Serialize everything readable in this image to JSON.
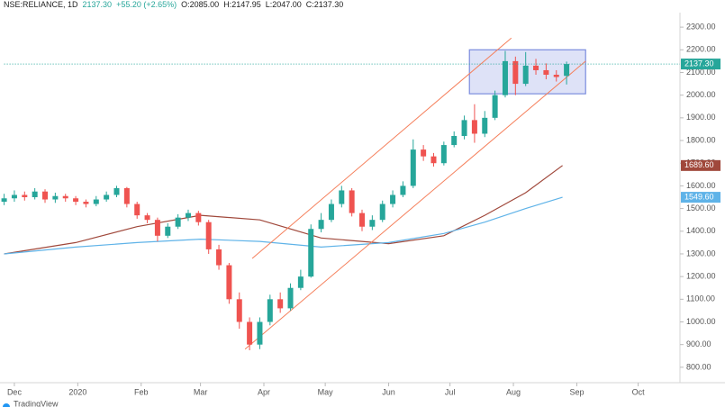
{
  "header": {
    "symbol": "NSE:RELIANCE, 1D",
    "last": "2137.30",
    "change": "+55.20 (+2.65%)",
    "open": "O:2085.00",
    "high": "H:2147.95",
    "low": "L:2047.00",
    "close": "C:2137.30"
  },
  "footer": {
    "brand": "TradingView"
  },
  "chart_data": {
    "type": "candlestick",
    "x": [
      -5,
      0,
      5,
      10,
      15,
      20,
      25,
      30,
      35,
      40,
      45,
      50,
      55,
      60,
      65,
      70,
      75,
      80,
      85,
      90,
      95,
      100,
      105,
      110,
      115,
      120,
      125,
      130,
      135,
      140,
      145,
      150,
      155,
      160,
      165,
      170,
      175,
      180,
      185,
      190,
      195,
      200,
      205,
      210,
      215,
      220,
      225,
      230,
      235,
      240,
      245,
      250,
      255,
      260,
      265,
      270
    ],
    "open": [
      1530,
      1545,
      1560,
      1550,
      1575,
      1540,
      1555,
      1545,
      1530,
      1520,
      1540,
      1560,
      1590,
      1520,
      1470,
      1450,
      1380,
      1420,
      1460,
      1480,
      1440,
      1320,
      1250,
      1100,
      1000,
      900,
      1000,
      1100,
      1060,
      1150,
      1200,
      1410,
      1450,
      1520,
      1580,
      1480,
      1420,
      1450,
      1520,
      1560,
      1600,
      1760,
      1730,
      1700,
      1780,
      1820,
      1890,
      1830,
      1900,
      2000,
      2150,
      2050,
      2130,
      2110,
      2090,
      2085
    ],
    "high": [
      1565,
      1580,
      1575,
      1590,
      1585,
      1570,
      1565,
      1555,
      1540,
      1555,
      1575,
      1600,
      1595,
      1530,
      1480,
      1460,
      1435,
      1475,
      1495,
      1490,
      1450,
      1340,
      1260,
      1130,
      1020,
      1020,
      1120,
      1130,
      1170,
      1230,
      1430,
      1480,
      1540,
      1600,
      1590,
      1495,
      1470,
      1535,
      1580,
      1620,
      1805,
      1780,
      1745,
      1795,
      1840,
      1910,
      1960,
      1930,
      2020,
      2195,
      2170,
      2190,
      2160,
      2140,
      2110,
      2147.95
    ],
    "low": [
      1515,
      1530,
      1535,
      1540,
      1525,
      1525,
      1530,
      1515,
      1505,
      1510,
      1530,
      1550,
      1505,
      1455,
      1435,
      1355,
      1370,
      1410,
      1445,
      1425,
      1300,
      1230,
      1080,
      970,
      875,
      880,
      985,
      1040,
      1050,
      1140,
      1195,
      1395,
      1440,
      1505,
      1465,
      1400,
      1405,
      1440,
      1505,
      1550,
      1590,
      1710,
      1685,
      1690,
      1770,
      1805,
      1790,
      1815,
      1890,
      1990,
      2000,
      2040,
      2090,
      2070,
      2060,
      2047
    ],
    "close": [
      1545,
      1560,
      1550,
      1575,
      1540,
      1555,
      1545,
      1530,
      1520,
      1540,
      1560,
      1590,
      1520,
      1470,
      1450,
      1380,
      1420,
      1460,
      1480,
      1440,
      1320,
      1250,
      1100,
      1000,
      900,
      1000,
      1100,
      1060,
      1150,
      1200,
      1410,
      1450,
      1520,
      1580,
      1480,
      1420,
      1450,
      1520,
      1560,
      1600,
      1760,
      1730,
      1700,
      1780,
      1820,
      1890,
      1830,
      1900,
      2000,
      2150,
      2050,
      2130,
      2110,
      2090,
      2080,
      2137.3
    ],
    "up_color": "#26a69a",
    "down_color": "#ef5350",
    "last_label": "2137.30",
    "series": [
      {
        "color": "#a0483b",
        "x": [
          -5,
          30,
          60,
          91,
          120,
          150,
          183,
          210,
          230,
          250,
          268
        ],
        "values": [
          1300,
          1350,
          1420,
          1470,
          1450,
          1370,
          1345,
          1380,
          1470,
          1570,
          1689.6
        ],
        "last_label": "1689.60"
      },
      {
        "color": "#5fb3e8",
        "x": [
          -5,
          30,
          60,
          91,
          120,
          150,
          183,
          210,
          230,
          250,
          268
        ],
        "values": [
          1300,
          1330,
          1350,
          1365,
          1355,
          1330,
          1350,
          1390,
          1440,
          1500,
          1549.6
        ],
        "last_label": "1549.60"
      }
    ],
    "channel": {
      "color": "#f57f5b",
      "lower": {
        "x": [
          112.8,
          279.3
        ],
        "y": [
          880,
          2150
        ]
      },
      "upper": {
        "x": [
          116.3,
          243
        ],
        "y": [
          1280,
          2252
        ]
      }
    },
    "range_box": {
      "x": [
        222.5,
        279.3
      ],
      "y": [
        2006,
        2200
      ],
      "color": "#7b8cde"
    },
    "xlim": [
      -5,
      325
    ],
    "xticks": [
      {
        "value": 0,
        "label": "Dec"
      },
      {
        "value": 31,
        "label": "2020"
      },
      {
        "value": 62,
        "label": "Feb"
      },
      {
        "value": 91,
        "label": "Mar"
      },
      {
        "value": 122,
        "label": "Apr"
      },
      {
        "value": 152,
        "label": "May"
      },
      {
        "value": 183,
        "label": "Jun"
      },
      {
        "value": 213,
        "label": "Jul"
      },
      {
        "value": 244,
        "label": "Aug"
      },
      {
        "value": 275,
        "label": "Sep"
      },
      {
        "value": 305,
        "label": "Oct"
      }
    ],
    "ylim": [
      732,
      2364
    ],
    "yticks": [
      {
        "value": 800,
        "label": "800.00"
      },
      {
        "value": 900,
        "label": "900.00"
      },
      {
        "value": 1000,
        "label": "1000.00"
      },
      {
        "value": 1100,
        "label": "1100.00"
      },
      {
        "value": 1200,
        "label": "1200.00"
      },
      {
        "value": 1300,
        "label": "1300.00"
      },
      {
        "value": 1400,
        "label": "1400.00"
      },
      {
        "value": 1500,
        "label": "1500.00"
      },
      {
        "value": 1600,
        "label": "1600.00"
      },
      {
        "value": 1700,
        "label": "1700.00"
      },
      {
        "value": 1800,
        "label": "1800.00"
      },
      {
        "value": 1900,
        "label": "1900.00"
      },
      {
        "value": 2000,
        "label": "2000.00"
      },
      {
        "value": 2100,
        "label": "2100.00"
      },
      {
        "value": 2200,
        "label": "2200.00"
      },
      {
        "value": 2300,
        "label": "2300.00"
      }
    ],
    "grid": false
  }
}
